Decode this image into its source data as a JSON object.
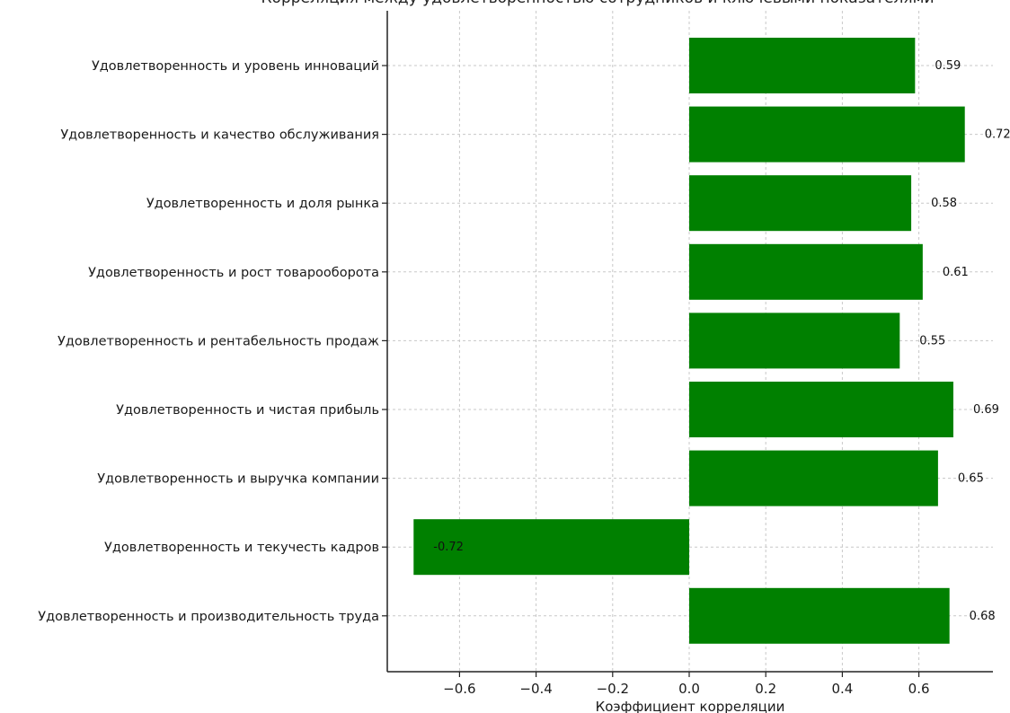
{
  "chart_data": {
    "type": "bar",
    "orientation": "horizontal",
    "title": "Корреляция между удовлетворенностью сотрудников и ключевыми показателями",
    "xlabel": "Коэффициент корреляции",
    "ylabel": "",
    "xlim": [
      -0.78,
      0.78
    ],
    "xticks": [
      -0.6,
      -0.4,
      -0.2,
      0.0,
      0.2,
      0.4,
      0.6
    ],
    "xtick_labels": [
      "−0.6",
      "−0.4",
      "−0.2",
      "0.0",
      "0.2",
      "0.4",
      "0.6"
    ],
    "grid": true,
    "bar_color": "#008000",
    "categories": [
      "Удовлетворенность и уровень инноваций",
      "Удовлетворенность и качество обслуживания",
      "Удовлетворенность и доля рынка",
      "Удовлетворенность и рост товарооборота",
      "Удовлетворенность и рентабельность продаж",
      "Удовлетворенность и чистая прибыль",
      "Удовлетворенность и выручка компании",
      "Удовлетворенность и текучесть кадров",
      "Удовлетворенность и производительность труда"
    ],
    "values": [
      0.59,
      0.72,
      0.58,
      0.61,
      0.55,
      0.69,
      0.65,
      -0.72,
      0.68
    ],
    "value_labels": [
      "0.59",
      "0.72",
      "0.58",
      "0.61",
      "0.55",
      "0.69",
      "0.65",
      "-0.72",
      "0.68"
    ]
  }
}
